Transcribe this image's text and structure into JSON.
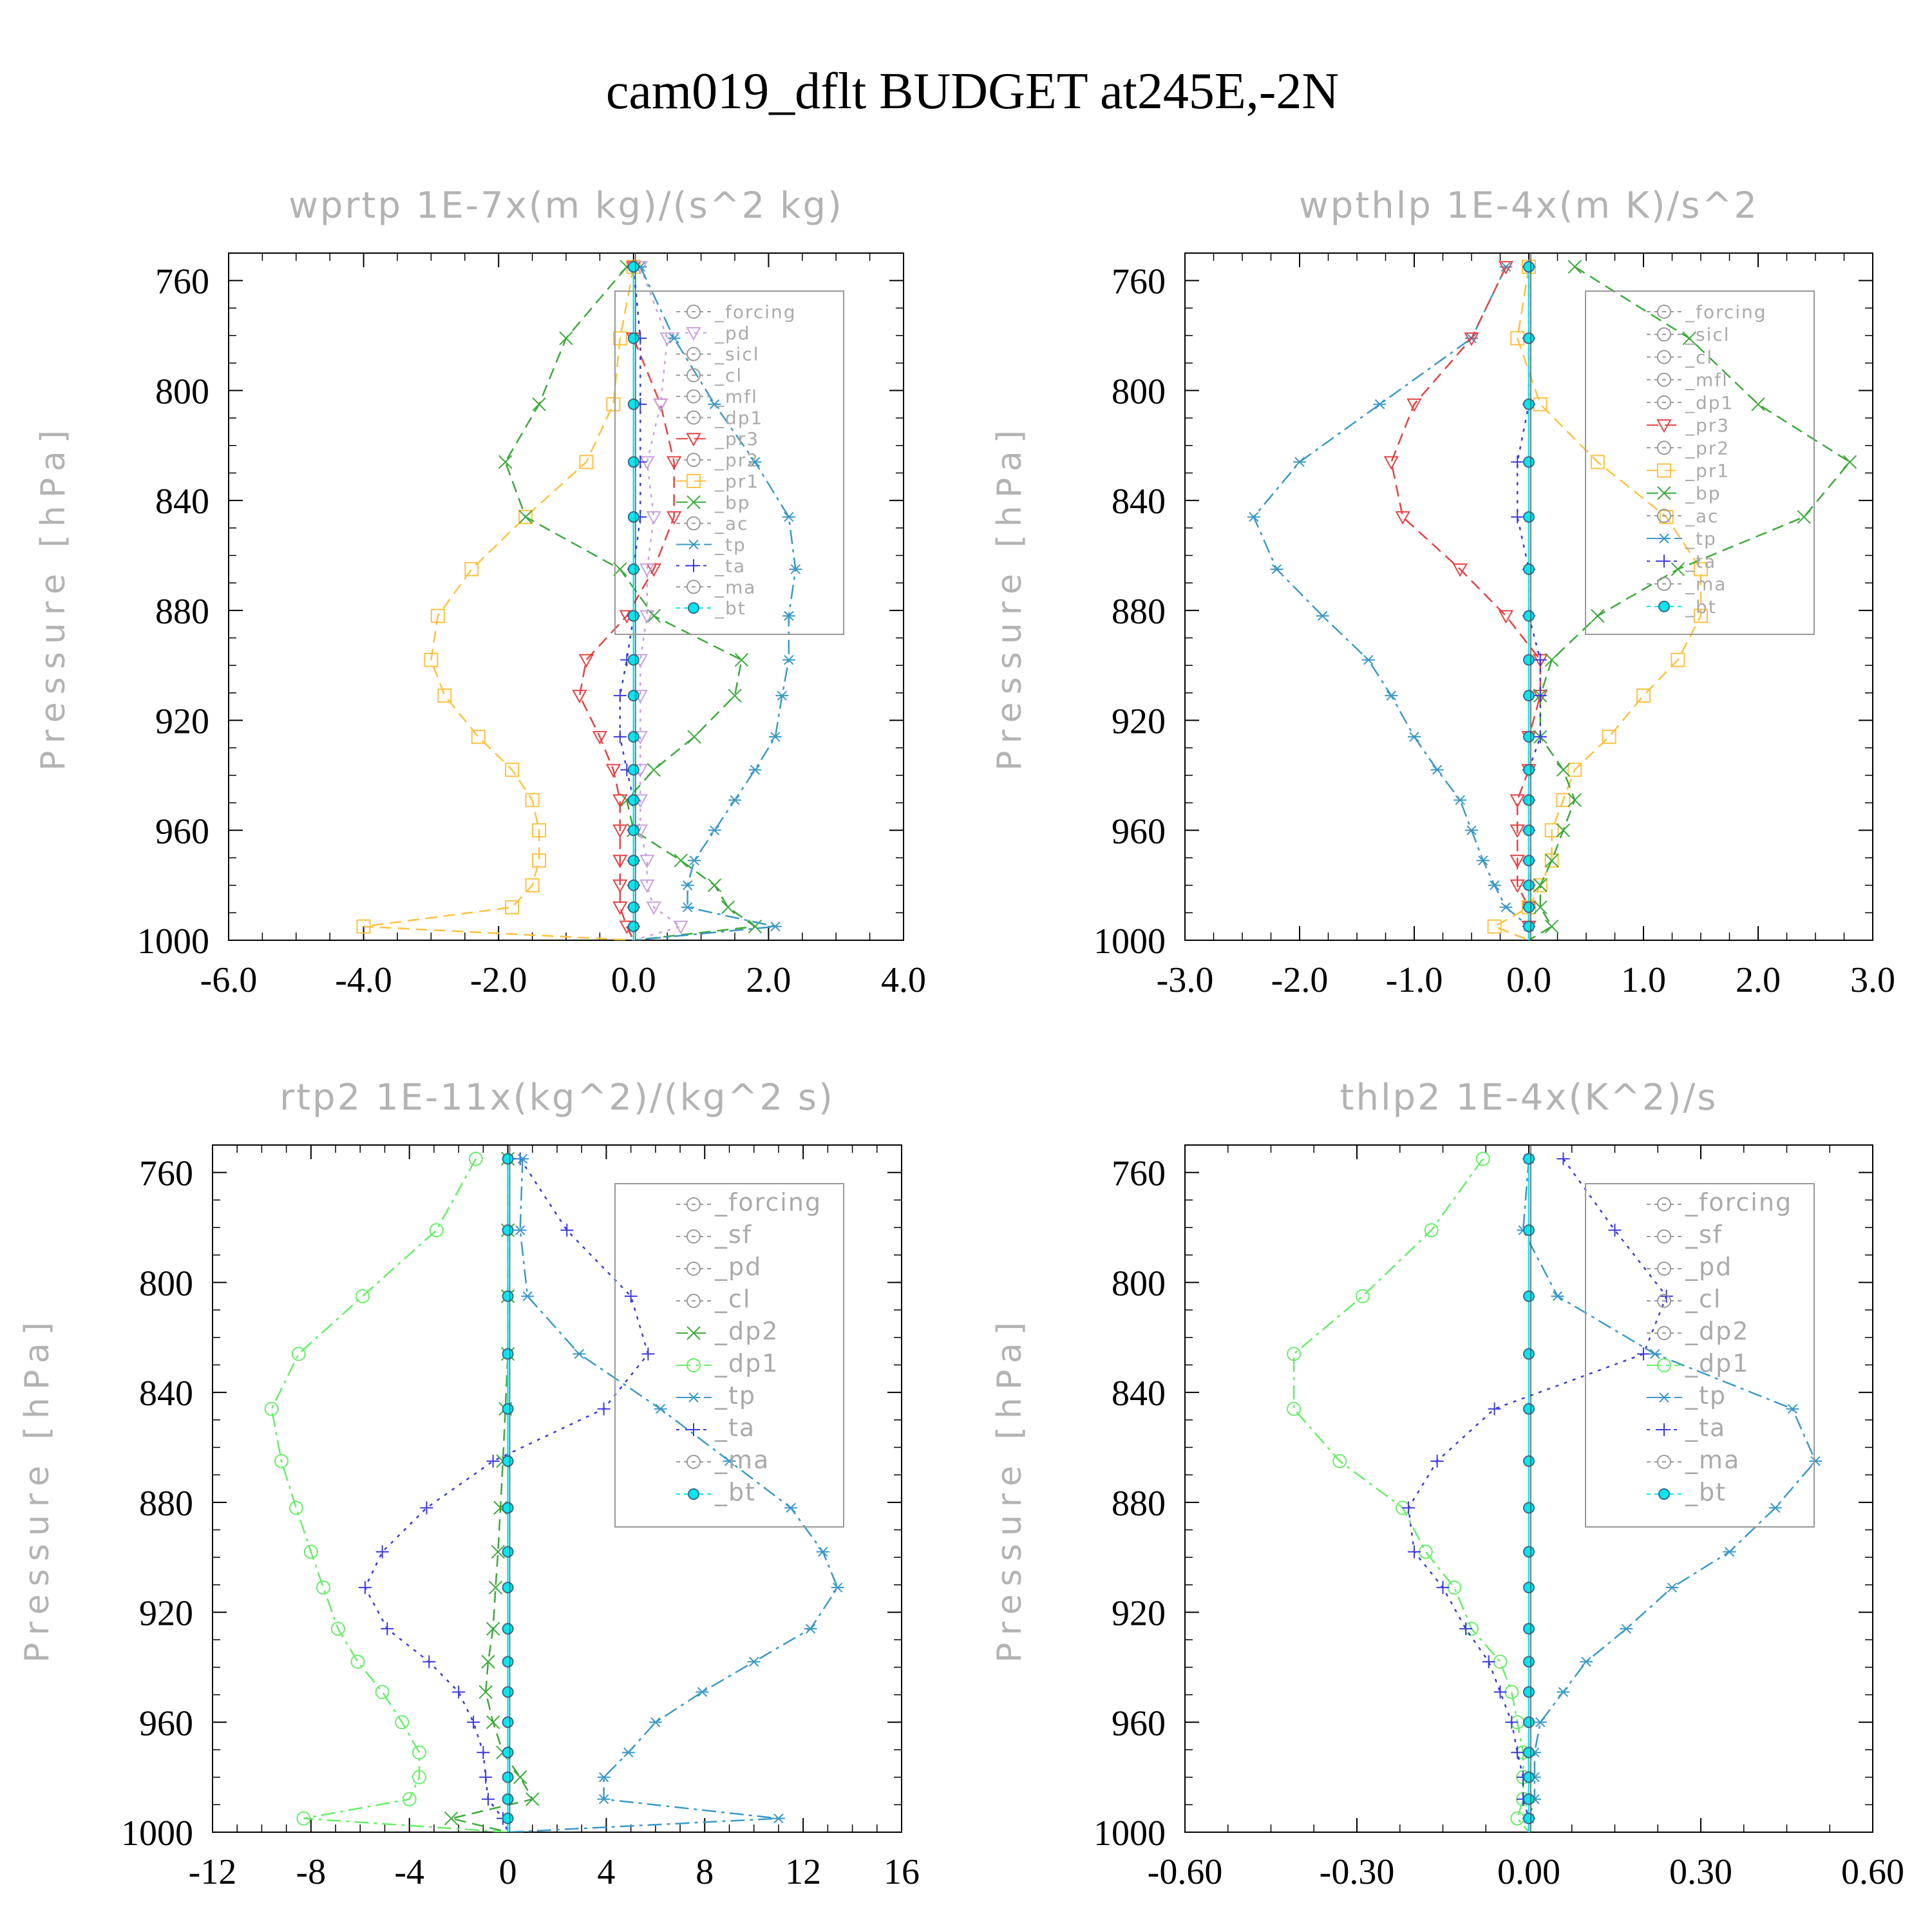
{
  "figure": {
    "title": "cam019_dflt  BUDGET at245E,-2N"
  },
  "colors": {
    "axis": "#000000",
    "subtitle": "#b3b3b3",
    "legend_text": "#aaaaaa",
    "series": {
      "_forcing": "#666666",
      "_forcing_red": "#e8403a",
      "_pd": "#c9a0dc",
      "_pd_orange": "#ffa040",
      "_sicl": "#9a70d0",
      "_cl_mag": "#c060c0",
      "_cl_yel": "#ffc020",
      "_mfl": "#c02050",
      "_dp1": "#e84040",
      "_dp1_green": "#66ee66",
      "_pr3": "#e84040",
      "_pr2": "#ffa040",
      "_pr1": "#ffc040",
      "_bp": "#3aaa3a",
      "_dp2": "#3aaa3a",
      "_sf": "#e84040",
      "_ac": "#66ee66",
      "_tp": "#3a98c8",
      "_ta": "#3a3ae0",
      "_ma": "#1a5a8a",
      "_bt": "#00e8f0",
      "zero_line": "#dd2222"
    }
  },
  "chart_data": [
    {
      "type": "line",
      "title": "wprtp   1E-7x(m kg)/(s^2 kg)",
      "ylabel": "Pressure [hPa]",
      "xlim": [
        -6,
        4
      ],
      "xticks": [
        "-6.0",
        "-4.0",
        "-2.0",
        "0.0",
        "2.0",
        "4.0"
      ],
      "ylim": [
        1000,
        750
      ],
      "yticks": [
        "760",
        "800",
        "840",
        "880",
        "920",
        "960",
        "1000"
      ],
      "p": [
        755,
        781,
        805,
        826,
        846,
        865,
        882,
        898,
        911,
        926,
        938,
        949,
        960,
        971,
        980,
        988,
        995,
        1000
      ],
      "legend": [
        "_forcing",
        "_pd",
        "_sicl",
        "_cl",
        "_mfl",
        "_dp1",
        "_pr3",
        "_pr2",
        "_pr1",
        "_bp",
        "_ac",
        "_tp",
        "_ta",
        "_ma",
        "_bt"
      ],
      "series": [
        {
          "name": "_pr1",
          "color": "_pr1",
          "marker": "square",
          "dash": "dashed",
          "x": [
            0.0,
            -0.2,
            -0.3,
            -0.7,
            -1.6,
            -2.4,
            -2.9,
            -3.0,
            -2.8,
            -2.3,
            -1.8,
            -1.5,
            -1.4,
            -1.4,
            -1.5,
            -1.8,
            -4.0,
            0.0
          ]
        },
        {
          "name": "_bp",
          "color": "_bp",
          "marker": "x",
          "dash": "dashed",
          "x": [
            -0.1,
            -1.0,
            -1.4,
            -1.9,
            -1.6,
            -0.2,
            0.3,
            1.6,
            1.5,
            0.9,
            0.3,
            -0.1,
            0.0,
            0.7,
            1.2,
            1.4,
            1.8,
            0.0
          ]
        },
        {
          "name": "_pr3",
          "color": "_pr3",
          "marker": "triangle-down",
          "dash": "dashed",
          "x": [
            0.0,
            0.0,
            0.4,
            0.6,
            0.6,
            0.3,
            -0.1,
            -0.7,
            -0.8,
            -0.5,
            -0.3,
            -0.2,
            -0.2,
            -0.2,
            -0.2,
            -0.2,
            -0.1,
            0.0
          ]
        },
        {
          "name": "_pd",
          "color": "_pd",
          "marker": "triangle-down",
          "dash": "dotted",
          "x": [
            0.1,
            0.5,
            0.4,
            0.2,
            0.3,
            0.2,
            0.2,
            0.1,
            0.1,
            0.1,
            0.1,
            0.1,
            0.1,
            0.2,
            0.2,
            0.3,
            0.7,
            0.0
          ]
        },
        {
          "name": "_tp",
          "color": "_tp",
          "marker": "star",
          "dash": "dashdot",
          "x": [
            0.1,
            0.6,
            1.2,
            1.8,
            2.3,
            2.4,
            2.3,
            2.3,
            2.2,
            2.1,
            1.8,
            1.5,
            1.2,
            0.9,
            0.8,
            0.8,
            2.1,
            0.0
          ]
        },
        {
          "name": "_ta",
          "color": "_ta",
          "marker": "plus",
          "dash": "dotted",
          "x": [
            0.0,
            0.1,
            0.1,
            0.1,
            0.1,
            0.0,
            0.0,
            -0.1,
            -0.2,
            -0.2,
            -0.1,
            0.0,
            0.0,
            0.0,
            0.0,
            0.0,
            0.0,
            0.0
          ]
        },
        {
          "name": "_bt",
          "color": "_bt",
          "marker": "dot",
          "dash": "solid",
          "x": [
            0.0,
            0.0,
            0.0,
            0.0,
            0.0,
            0.0,
            0.0,
            0.0,
            0.0,
            0.0,
            0.0,
            0.0,
            0.0,
            0.0,
            0.0,
            0.0,
            0.0,
            0.0
          ]
        }
      ]
    },
    {
      "type": "line",
      "title": "wpthlp   1E-4x(m K)/s^2",
      "ylabel": "Pressure [hPa]",
      "xlim": [
        -3,
        3
      ],
      "xticks": [
        "-3.0",
        "-2.0",
        "-1.0",
        "0.0",
        "1.0",
        "2.0",
        "3.0"
      ],
      "ylim": [
        1000,
        750
      ],
      "yticks": [
        "760",
        "800",
        "840",
        "880",
        "920",
        "960",
        "1000"
      ],
      "p": [
        755,
        781,
        805,
        826,
        846,
        865,
        882,
        898,
        911,
        926,
        938,
        949,
        960,
        971,
        980,
        988,
        995,
        1000
      ],
      "legend": [
        "_forcing",
        "_sicl",
        "_cl",
        "_mfl",
        "_dp1",
        "_pr3",
        "_pr2",
        "_pr1",
        "_bp",
        "_ac",
        "_tp",
        "_ta",
        "_ma",
        "_bt"
      ],
      "series": [
        {
          "name": "_tp",
          "color": "_tp",
          "marker": "star",
          "dash": "dashdot",
          "x": [
            -0.2,
            -0.5,
            -1.3,
            -2.0,
            -2.4,
            -2.2,
            -1.8,
            -1.4,
            -1.2,
            -1.0,
            -0.8,
            -0.6,
            -0.5,
            -0.4,
            -0.3,
            -0.2,
            0.0,
            0.0
          ]
        },
        {
          "name": "_pr3",
          "color": "_pr3",
          "marker": "triangle-down",
          "dash": "dashed",
          "x": [
            -0.2,
            -0.5,
            -1.0,
            -1.2,
            -1.1,
            -0.6,
            -0.2,
            0.1,
            0.1,
            0.0,
            0.0,
            -0.1,
            -0.1,
            -0.1,
            -0.1,
            0.0,
            0.0,
            0.0
          ]
        },
        {
          "name": "_pr1",
          "color": "_pr1",
          "marker": "square",
          "dash": "dashed",
          "x": [
            0.0,
            -0.1,
            0.1,
            0.6,
            1.2,
            1.5,
            1.5,
            1.3,
            1.0,
            0.7,
            0.4,
            0.3,
            0.2,
            0.2,
            0.1,
            0.0,
            -0.3,
            0.0
          ]
        },
        {
          "name": "_bp",
          "color": "_bp",
          "marker": "x",
          "dash": "dashed",
          "x": [
            0.4,
            1.4,
            2.0,
            2.8,
            2.4,
            1.3,
            0.6,
            0.2,
            0.1,
            0.1,
            0.3,
            0.4,
            0.3,
            0.2,
            0.1,
            0.1,
            0.2,
            0.0
          ]
        },
        {
          "name": "_ta",
          "color": "_ta",
          "marker": "plus",
          "dash": "dotted",
          "x": [
            0.0,
            0.0,
            0.0,
            -0.1,
            -0.1,
            0.0,
            0.0,
            0.1,
            0.1,
            0.1,
            0.0,
            0.0,
            0.0,
            0.0,
            0.0,
            0.0,
            0.0,
            0.0
          ]
        },
        {
          "name": "_bt",
          "color": "_bt",
          "marker": "dot",
          "dash": "solid",
          "x": [
            0.0,
            0.0,
            0.0,
            0.0,
            0.0,
            0.0,
            0.0,
            0.0,
            0.0,
            0.0,
            0.0,
            0.0,
            0.0,
            0.0,
            0.0,
            0.0,
            0.0,
            0.0
          ]
        }
      ]
    },
    {
      "type": "line",
      "title": "rtp2   1E-11x(kg^2)/(kg^2 s)",
      "ylabel": "Pressure [hPa]",
      "xlim": [
        -12,
        16
      ],
      "xticks": [
        "-12",
        "-8",
        "-4",
        "0",
        "4",
        "8",
        "12",
        "16"
      ],
      "ylim": [
        1000,
        750
      ],
      "yticks": [
        "760",
        "800",
        "840",
        "880",
        "920",
        "960",
        "1000"
      ],
      "p": [
        755,
        781,
        805,
        826,
        846,
        865,
        882,
        898,
        911,
        926,
        938,
        949,
        960,
        971,
        980,
        988,
        995,
        1000
      ],
      "legend": [
        "_forcing",
        "_sf",
        "_pd",
        "_cl",
        "_dp2",
        "_dp1",
        "_tp",
        "_ta",
        "_ma",
        "_bt"
      ],
      "series": [
        {
          "name": "_dp1",
          "color": "_dp1_green",
          "marker": "circle",
          "dash": "dashdot",
          "x": [
            -1.3,
            -2.9,
            -5.9,
            -8.5,
            -9.6,
            -9.2,
            -8.6,
            -8.0,
            -7.5,
            -6.9,
            -6.1,
            -5.1,
            -4.3,
            -3.6,
            -3.6,
            -4.0,
            -8.3,
            0.0
          ]
        },
        {
          "name": "_ta",
          "color": "_ta",
          "marker": "plus",
          "dash": "dotted",
          "x": [
            0.5,
            2.4,
            5.0,
            5.7,
            3.9,
            -0.6,
            -3.3,
            -5.1,
            -5.8,
            -4.9,
            -3.2,
            -2.0,
            -1.4,
            -1.0,
            -0.9,
            -0.8,
            -0.2,
            0.0
          ]
        },
        {
          "name": "_tp",
          "color": "_tp",
          "marker": "star",
          "dash": "dashdot",
          "x": [
            0.6,
            0.5,
            0.8,
            2.9,
            6.2,
            9.0,
            11.5,
            12.8,
            13.4,
            12.3,
            10.0,
            7.9,
            6.0,
            4.9,
            3.9,
            3.9,
            11.0,
            0.0
          ]
        },
        {
          "name": "_dp2",
          "color": "_dp2",
          "marker": "x",
          "dash": "dashed",
          "x": [
            0.0,
            0.0,
            0.0,
            0.0,
            -0.1,
            -0.2,
            -0.3,
            -0.4,
            -0.5,
            -0.6,
            -0.8,
            -0.9,
            -0.6,
            -0.2,
            0.5,
            1.0,
            -2.3,
            0.0
          ]
        },
        {
          "name": "_bt",
          "color": "_bt",
          "marker": "dot",
          "dash": "solid",
          "x": [
            0.0,
            0.0,
            0.0,
            0.0,
            0.0,
            0.0,
            0.0,
            0.0,
            0.0,
            0.0,
            0.0,
            0.0,
            0.0,
            0.0,
            0.0,
            0.0,
            0.0,
            0.0
          ]
        }
      ]
    },
    {
      "type": "line",
      "title": "thlp2   1E-4x(K^2)/s",
      "ylabel": "Pressure [hPa]",
      "xlim": [
        -0.6,
        0.6
      ],
      "xticks": [
        "-0.60",
        "-0.30",
        "0.00",
        "0.30",
        "0.60"
      ],
      "ylim": [
        1000,
        750
      ],
      "yticks": [
        "760",
        "800",
        "840",
        "880",
        "920",
        "960",
        "1000"
      ],
      "p": [
        755,
        781,
        805,
        826,
        846,
        865,
        882,
        898,
        911,
        926,
        938,
        949,
        960,
        971,
        980,
        988,
        995,
        1000
      ],
      "legend": [
        "_forcing",
        "_sf",
        "_pd",
        "_cl",
        "_dp2",
        "_dp1",
        "_tp",
        "_ta",
        "_ma",
        "_bt"
      ],
      "series": [
        {
          "name": "_dp1",
          "color": "_dp1_green",
          "marker": "circle",
          "dash": "dashdot",
          "x": [
            -0.08,
            -0.17,
            -0.29,
            -0.41,
            -0.41,
            -0.33,
            -0.22,
            -0.18,
            -0.13,
            -0.1,
            -0.05,
            -0.03,
            -0.02,
            -0.01,
            -0.01,
            -0.01,
            -0.02,
            0.0
          ]
        },
        {
          "name": "_ta",
          "color": "_ta",
          "marker": "plus",
          "dash": "dotted",
          "x": [
            0.06,
            0.15,
            0.24,
            0.2,
            -0.06,
            -0.16,
            -0.21,
            -0.2,
            -0.15,
            -0.11,
            -0.07,
            -0.05,
            -0.03,
            -0.02,
            -0.01,
            -0.01,
            0.0,
            0.0
          ]
        },
        {
          "name": "_tp",
          "color": "_tp",
          "marker": "star",
          "dash": "dashdot",
          "x": [
            0.0,
            -0.01,
            0.05,
            0.22,
            0.46,
            0.5,
            0.43,
            0.35,
            0.25,
            0.17,
            0.1,
            0.06,
            0.02,
            0.01,
            0.01,
            0.01,
            0.0,
            0.0
          ]
        },
        {
          "name": "_bt",
          "color": "_bt",
          "marker": "dot",
          "dash": "solid",
          "x": [
            0.0,
            0.0,
            0.0,
            0.0,
            0.0,
            0.0,
            0.0,
            0.0,
            0.0,
            0.0,
            0.0,
            0.0,
            0.0,
            0.0,
            0.0,
            0.0,
            0.0,
            0.0
          ]
        }
      ]
    }
  ]
}
